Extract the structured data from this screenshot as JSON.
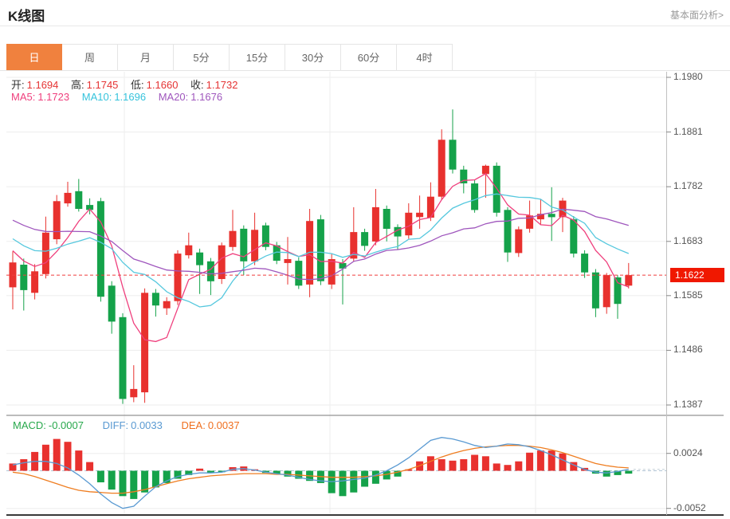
{
  "header": {
    "title": "K线图",
    "link": "基本面分析>"
  },
  "tabs": {
    "items": [
      "日",
      "周",
      "月",
      "5分",
      "15分",
      "30分",
      "60分",
      "4时"
    ],
    "active": "日"
  },
  "info": {
    "ohlc": [
      {
        "label": "开:",
        "value": "1.1694"
      },
      {
        "label": "高:",
        "value": "1.1745"
      },
      {
        "label": "低:",
        "value": "1.1660"
      },
      {
        "label": "收:",
        "value": "1.1732"
      }
    ],
    "ma": [
      {
        "label": "MA5:",
        "value": "1.1723"
      },
      {
        "label": "MA10:",
        "value": "1.1696"
      },
      {
        "label": "MA20:",
        "value": "1.1676"
      }
    ]
  },
  "macd_info": [
    {
      "label": "MACD:",
      "value": "-0.0007"
    },
    {
      "label": "DIFF:",
      "value": "0.0033"
    },
    {
      "label": "DEA:",
      "value": "0.0037"
    }
  ],
  "colors": {
    "up": "#e8312e",
    "down": "#15a24a",
    "ma5": "#ef3f7d",
    "ma10": "#56c8de",
    "ma20": "#9f56bd",
    "diff_line": "#5a9ad2",
    "dea_line": "#ef7d20",
    "price_line": "#f03c3c",
    "badge_bg": "#f01800",
    "accent_tab": "#f0813e",
    "grid": "#ededed",
    "zero_line": "#b3c6d6"
  },
  "chart_data": {
    "type": "candlestick",
    "title": "K线图",
    "interval_selected": "日",
    "current_price": 1.1622,
    "current_price_label": "1.1622",
    "main_axis": {
      "labels": [
        {
          "text": "1.1980",
          "value": 1.198
        },
        {
          "text": "1.1881",
          "value": 1.1881
        },
        {
          "text": "1.1782",
          "value": 1.1782
        },
        {
          "text": "1.1683",
          "value": 1.1683
        },
        {
          "text": "1.1585",
          "value": 1.1585
        },
        {
          "text": "1.1486",
          "value": 1.1486
        },
        {
          "text": "1.1387",
          "value": 1.1387
        }
      ]
    },
    "candles": [
      [
        1.16,
        1.1665,
        1.156,
        1.1645
      ],
      [
        1.1641,
        1.1652,
        1.1558,
        1.1595
      ],
      [
        1.159,
        1.1642,
        1.1578,
        1.1629
      ],
      [
        1.1624,
        1.1728,
        1.1616,
        1.1699
      ],
      [
        1.1687,
        1.1767,
        1.1678,
        1.1756
      ],
      [
        1.1752,
        1.1791,
        1.1746,
        1.1771
      ],
      [
        1.1774,
        1.1796,
        1.1737,
        1.1742
      ],
      [
        1.1749,
        1.1761,
        1.1732,
        1.174
      ],
      [
        1.1756,
        1.1762,
        1.1574,
        1.1583
      ],
      [
        1.1603,
        1.1611,
        1.1516,
        1.1538
      ],
      [
        1.1546,
        1.1553,
        1.1389,
        1.1398
      ],
      [
        1.1401,
        1.1459,
        1.1392,
        1.1416
      ],
      [
        1.141,
        1.1598,
        1.1391,
        1.159
      ],
      [
        1.159,
        1.1597,
        1.1547,
        1.1567
      ],
      [
        1.1562,
        1.1582,
        1.155,
        1.1575
      ],
      [
        1.1575,
        1.1667,
        1.1568,
        1.1661
      ],
      [
        1.1658,
        1.1699,
        1.1652,
        1.1676
      ],
      [
        1.1663,
        1.167,
        1.1588,
        1.164
      ],
      [
        1.1647,
        1.1653,
        1.1586,
        1.1611
      ],
      [
        1.1615,
        1.1681,
        1.1606,
        1.1676
      ],
      [
        1.1673,
        1.174,
        1.1666,
        1.1702
      ],
      [
        1.1706,
        1.1712,
        1.1622,
        1.1647
      ],
      [
        1.1647,
        1.1735,
        1.164,
        1.1704
      ],
      [
        1.1712,
        1.1717,
        1.1667,
        1.1673
      ],
      [
        1.1676,
        1.1682,
        1.1642,
        1.1648
      ],
      [
        1.1644,
        1.1691,
        1.1605,
        1.1651
      ],
      [
        1.1648,
        1.1654,
        1.1597,
        1.1603
      ],
      [
        1.1605,
        1.1742,
        1.1582,
        1.172
      ],
      [
        1.1723,
        1.1731,
        1.1604,
        1.1611
      ],
      [
        1.1605,
        1.1661,
        1.1597,
        1.1651
      ],
      [
        1.1644,
        1.1651,
        1.1569,
        1.1634
      ],
      [
        1.1652,
        1.1745,
        1.1646,
        1.17
      ],
      [
        1.17,
        1.1706,
        1.1666,
        1.1675
      ],
      [
        1.1683,
        1.1778,
        1.1676,
        1.1745
      ],
      [
        1.1742,
        1.1748,
        1.1683,
        1.1706
      ],
      [
        1.1709,
        1.1714,
        1.1668,
        1.1692
      ],
      [
        1.1694,
        1.1752,
        1.1688,
        1.1735
      ],
      [
        1.1727,
        1.1766,
        1.1706,
        1.1735
      ],
      [
        1.1726,
        1.179,
        1.172,
        1.1764
      ],
      [
        1.1764,
        1.1886,
        1.1758,
        1.1867
      ],
      [
        1.1867,
        1.1922,
        1.1806,
        1.1813
      ],
      [
        1.1813,
        1.182,
        1.177,
        1.1788
      ],
      [
        1.1788,
        1.1794,
        1.1735,
        1.174
      ],
      [
        1.1805,
        1.1822,
        1.1762,
        1.182
      ],
      [
        1.182,
        1.1826,
        1.1728,
        1.1735
      ],
      [
        1.174,
        1.1745,
        1.1646,
        1.1663
      ],
      [
        1.1662,
        1.171,
        1.1655,
        1.1705
      ],
      [
        1.1706,
        1.1757,
        1.1699,
        1.173
      ],
      [
        1.1723,
        1.1759,
        1.1713,
        1.1733
      ],
      [
        1.1733,
        1.1781,
        1.1684,
        1.1727
      ],
      [
        1.1727,
        1.1762,
        1.17,
        1.1757
      ],
      [
        1.1723,
        1.1729,
        1.1654,
        1.1661
      ],
      [
        1.1661,
        1.1667,
        1.1617,
        1.1627
      ],
      [
        1.1627,
        1.1633,
        1.1546,
        1.1562
      ],
      [
        1.1564,
        1.1626,
        1.1552,
        1.1622
      ],
      [
        1.1618,
        1.1622,
        1.1543,
        1.157
      ],
      [
        1.1603,
        1.1644,
        1.1598,
        1.1622
      ]
    ],
    "prehistory_closes": [
      1.179,
      1.1783,
      1.1776,
      1.177,
      1.1764,
      1.1758,
      1.1752,
      1.1746,
      1.174,
      1.1734,
      1.1728,
      1.1722,
      1.1716,
      1.171,
      1.1703,
      1.1696,
      1.1688,
      1.1678,
      1.1666,
      1.1654
    ],
    "ma_periods": [
      5,
      10,
      20
    ],
    "macd": {
      "axis_labels": [
        {
          "text": "0.0024",
          "value": 0.0024
        },
        {
          "text": "-0.0052",
          "value": -0.0052
        }
      ],
      "hist": [
        0.001,
        0.0016,
        0.0026,
        0.0036,
        0.0044,
        0.004,
        0.0028,
        0.0012,
        -0.0016,
        -0.0026,
        -0.0035,
        -0.0039,
        -0.003,
        -0.0023,
        -0.0017,
        -0.0011,
        -0.0006,
        0.0003,
        -0.0003,
        -0.0002,
        0.0005,
        0.0006,
        0.0002,
        -0.0003,
        -0.0005,
        -0.0008,
        -0.0011,
        -0.0014,
        -0.0017,
        -0.0031,
        -0.0035,
        -0.003,
        -0.0022,
        -0.0018,
        -0.0012,
        -0.0008,
        0.0002,
        0.0013,
        0.002,
        0.0016,
        0.0014,
        0.0016,
        0.0022,
        0.002,
        0.001,
        0.0008,
        0.0013,
        0.0025,
        0.0028,
        0.0028,
        0.0024,
        0.0012,
        0.0004,
        -0.0004,
        -0.0008,
        -0.0006,
        -0.0004
      ],
      "diff": [
        0.0008,
        0.0011,
        0.0013,
        0.0013,
        0.001,
        0.0004,
        -0.0006,
        -0.0018,
        -0.0032,
        -0.0044,
        -0.0052,
        -0.0049,
        -0.0035,
        -0.0022,
        -0.0014,
        -0.0008,
        -0.0005,
        -0.0003,
        -0.0003,
        -0.0002,
        0.0002,
        0.0003,
        0.0001,
        -0.0002,
        -0.0004,
        -0.0006,
        -0.0009,
        -0.0012,
        -0.0014,
        -0.0015,
        -0.0014,
        -0.0012,
        -0.001,
        -0.0006,
        0.0,
        0.0008,
        0.0018,
        0.003,
        0.0042,
        0.0046,
        0.0044,
        0.004,
        0.0035,
        0.0032,
        0.0034,
        0.0037,
        0.0036,
        0.0033,
        0.0028,
        0.0022,
        0.0015,
        0.0008,
        0.0002,
        -0.0002,
        -0.0003,
        -0.0001,
        0.0002
      ],
      "dea": [
        -0.0002,
        -0.0004,
        -0.0008,
        -0.0013,
        -0.0018,
        -0.0023,
        -0.0027,
        -0.0029,
        -0.003,
        -0.0031,
        -0.0031,
        -0.0029,
        -0.0026,
        -0.0022,
        -0.0018,
        -0.0014,
        -0.0011,
        -0.0009,
        -0.0007,
        -0.0006,
        -0.0005,
        -0.0004,
        -0.0004,
        -0.0004,
        -0.0005,
        -0.0005,
        -0.0006,
        -0.0007,
        -0.0008,
        -0.0009,
        -0.0009,
        -0.0009,
        -0.0008,
        -0.0007,
        -0.0005,
        -0.0002,
        0.0002,
        0.0007,
        0.0013,
        0.0019,
        0.0024,
        0.0028,
        0.0031,
        0.0033,
        0.0034,
        0.0035,
        0.0035,
        0.0034,
        0.0032,
        0.0029,
        0.0025,
        0.002,
        0.0015,
        0.001,
        0.0007,
        0.0005,
        0.0004
      ]
    }
  }
}
